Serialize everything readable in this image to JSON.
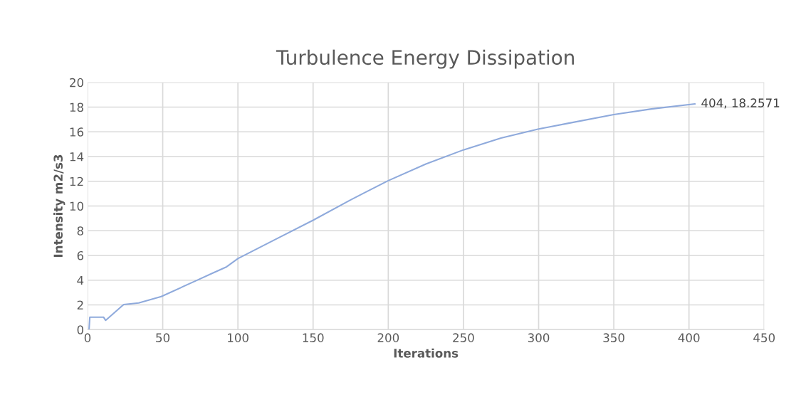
{
  "chart_data": {
    "type": "line",
    "title": "Turbulence Energy Dissipation",
    "xlabel": "Iterations",
    "ylabel": "Intensity m2/s3",
    "series": [
      {
        "color": "#8faadc",
        "x": [
          1,
          1.5,
          10.7,
          12,
          24,
          34,
          49,
          72,
          83,
          92.5,
          100,
          125,
          150,
          175,
          200,
          225,
          250,
          275,
          300,
          320,
          350,
          375,
          404
        ],
        "values": [
          0,
          1.0,
          1.0,
          0.75,
          2.03,
          2.16,
          2.67,
          3.95,
          4.56,
          5.08,
          5.75,
          7.3,
          8.85,
          10.5,
          12.05,
          13.4,
          14.54,
          15.5,
          16.23,
          16.7,
          17.4,
          17.85,
          18.2571
        ]
      }
    ],
    "xlim": [
      0,
      450
    ],
    "xticks": [
      0,
      50,
      100,
      150,
      200,
      250,
      300,
      350,
      400,
      450
    ],
    "ylim": [
      0,
      20
    ],
    "yticks": [
      0,
      2,
      4,
      6,
      8,
      10,
      12,
      14,
      16,
      18,
      20
    ],
    "grid": true,
    "marker": "none",
    "line_style": "solid",
    "annotations": [
      {
        "text": "404, 18.2571",
        "x": 404,
        "y": 18.2571
      }
    ]
  }
}
